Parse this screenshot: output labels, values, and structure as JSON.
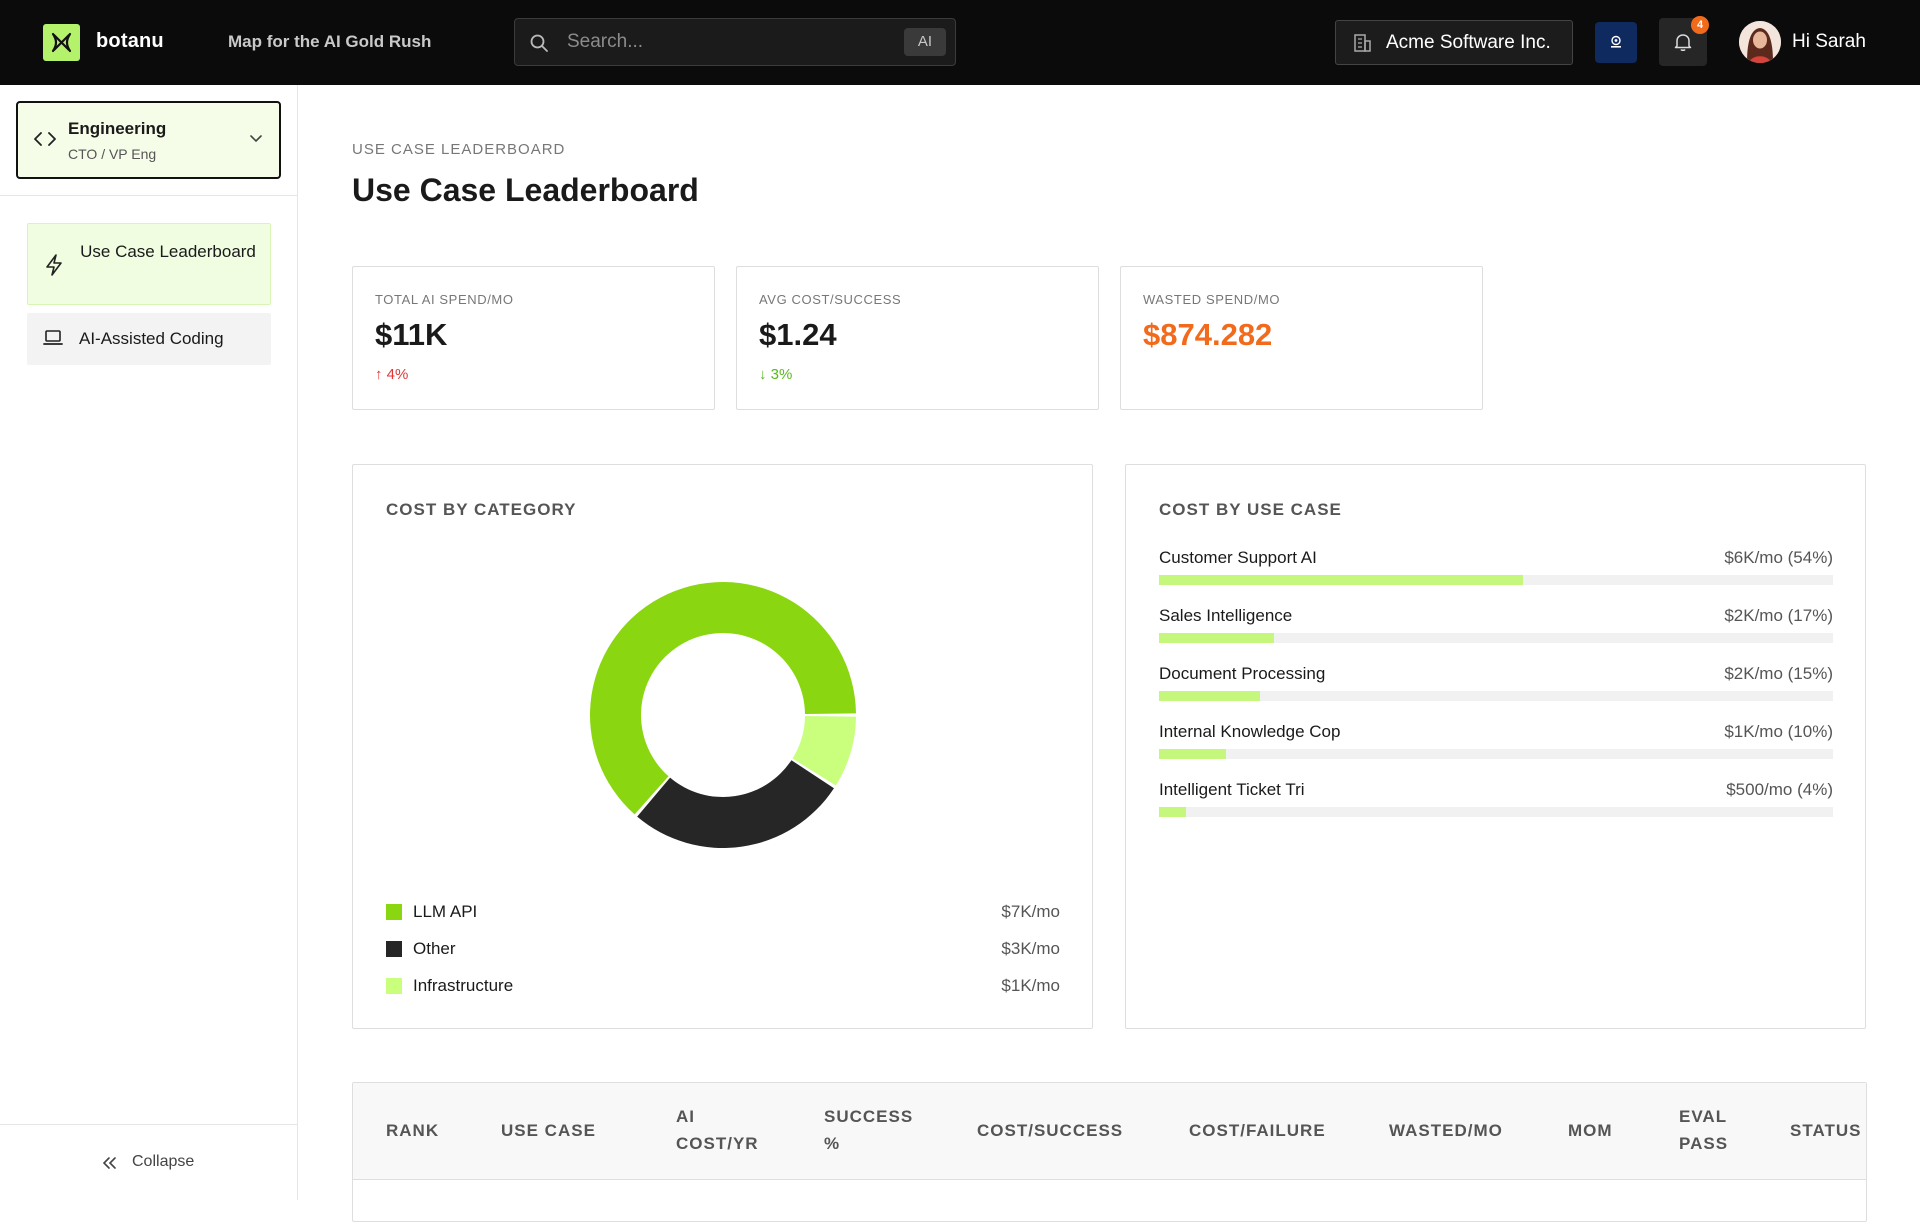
{
  "header": {
    "brand": "botanu",
    "tagline": "Map for the AI Gold Rush",
    "search_placeholder": "Search...",
    "ai_chip": "AI",
    "company": "Acme Software Inc.",
    "notifications_count": "4",
    "greeting": "Hi Sarah"
  },
  "sidebar": {
    "role_title": "Engineering",
    "role_subtitle": "CTO / VP Eng",
    "items": [
      {
        "label": "Use Case Leaderboard",
        "icon": "lightning-icon",
        "active": true
      },
      {
        "label": "AI-Assisted Coding",
        "icon": "laptop-icon",
        "active": false
      }
    ],
    "collapse_label": "Collapse"
  },
  "page": {
    "eyebrow": "USE CASE LEADERBOARD",
    "title": "Use Case Leaderboard"
  },
  "kpis": [
    {
      "label": "TOTAL AI SPEND/MO",
      "value": "$11K",
      "delta": "↑ 4%",
      "direction": "up"
    },
    {
      "label": "AVG COST/SUCCESS",
      "value": "$1.24",
      "delta": "↓ 3%",
      "direction": "down"
    },
    {
      "label": "WASTED SPEND/MO",
      "value": "$874.282",
      "delta": "",
      "direction": "none",
      "color": "#f26a1b"
    }
  ],
  "cost_by_category": {
    "title": "COST BY CATEGORY",
    "items": [
      {
        "name": "LLM API",
        "value": "$7K/mo",
        "amount": 7,
        "color": "#8ad610"
      },
      {
        "name": "Other",
        "value": "$3K/mo",
        "amount": 3,
        "color": "#262626"
      },
      {
        "name": "Infrastructure",
        "value": "$1K/mo",
        "amount": 1,
        "color": "#caff7e"
      }
    ]
  },
  "cost_by_use_case": {
    "title": "COST BY USE CASE",
    "items": [
      {
        "name": "Customer Support AI",
        "value": "$6K/mo (54%)",
        "pct": 54
      },
      {
        "name": "Sales Intelligence",
        "value": "$2K/mo (17%)",
        "pct": 17
      },
      {
        "name": "Document Processing",
        "value": "$2K/mo (15%)",
        "pct": 15
      },
      {
        "name": "Internal Knowledge Cop",
        "value": "$1K/mo (10%)",
        "pct": 10
      },
      {
        "name": "Intelligent Ticket Tri",
        "value": "$500/mo (4%)",
        "pct": 4
      }
    ]
  },
  "table": {
    "headers": [
      "RANK",
      "USE CASE",
      "AI COST/YR",
      "SUCCESS %",
      "COST/SUCCESS",
      "COST/FAILURE",
      "WASTED/MO",
      "MOM",
      "EVAL PASS",
      "STATUS"
    ]
  },
  "colors": {
    "accent": "#b5f26b",
    "bar_fill": "#c5f77c",
    "warning": "#f26a1b"
  }
}
